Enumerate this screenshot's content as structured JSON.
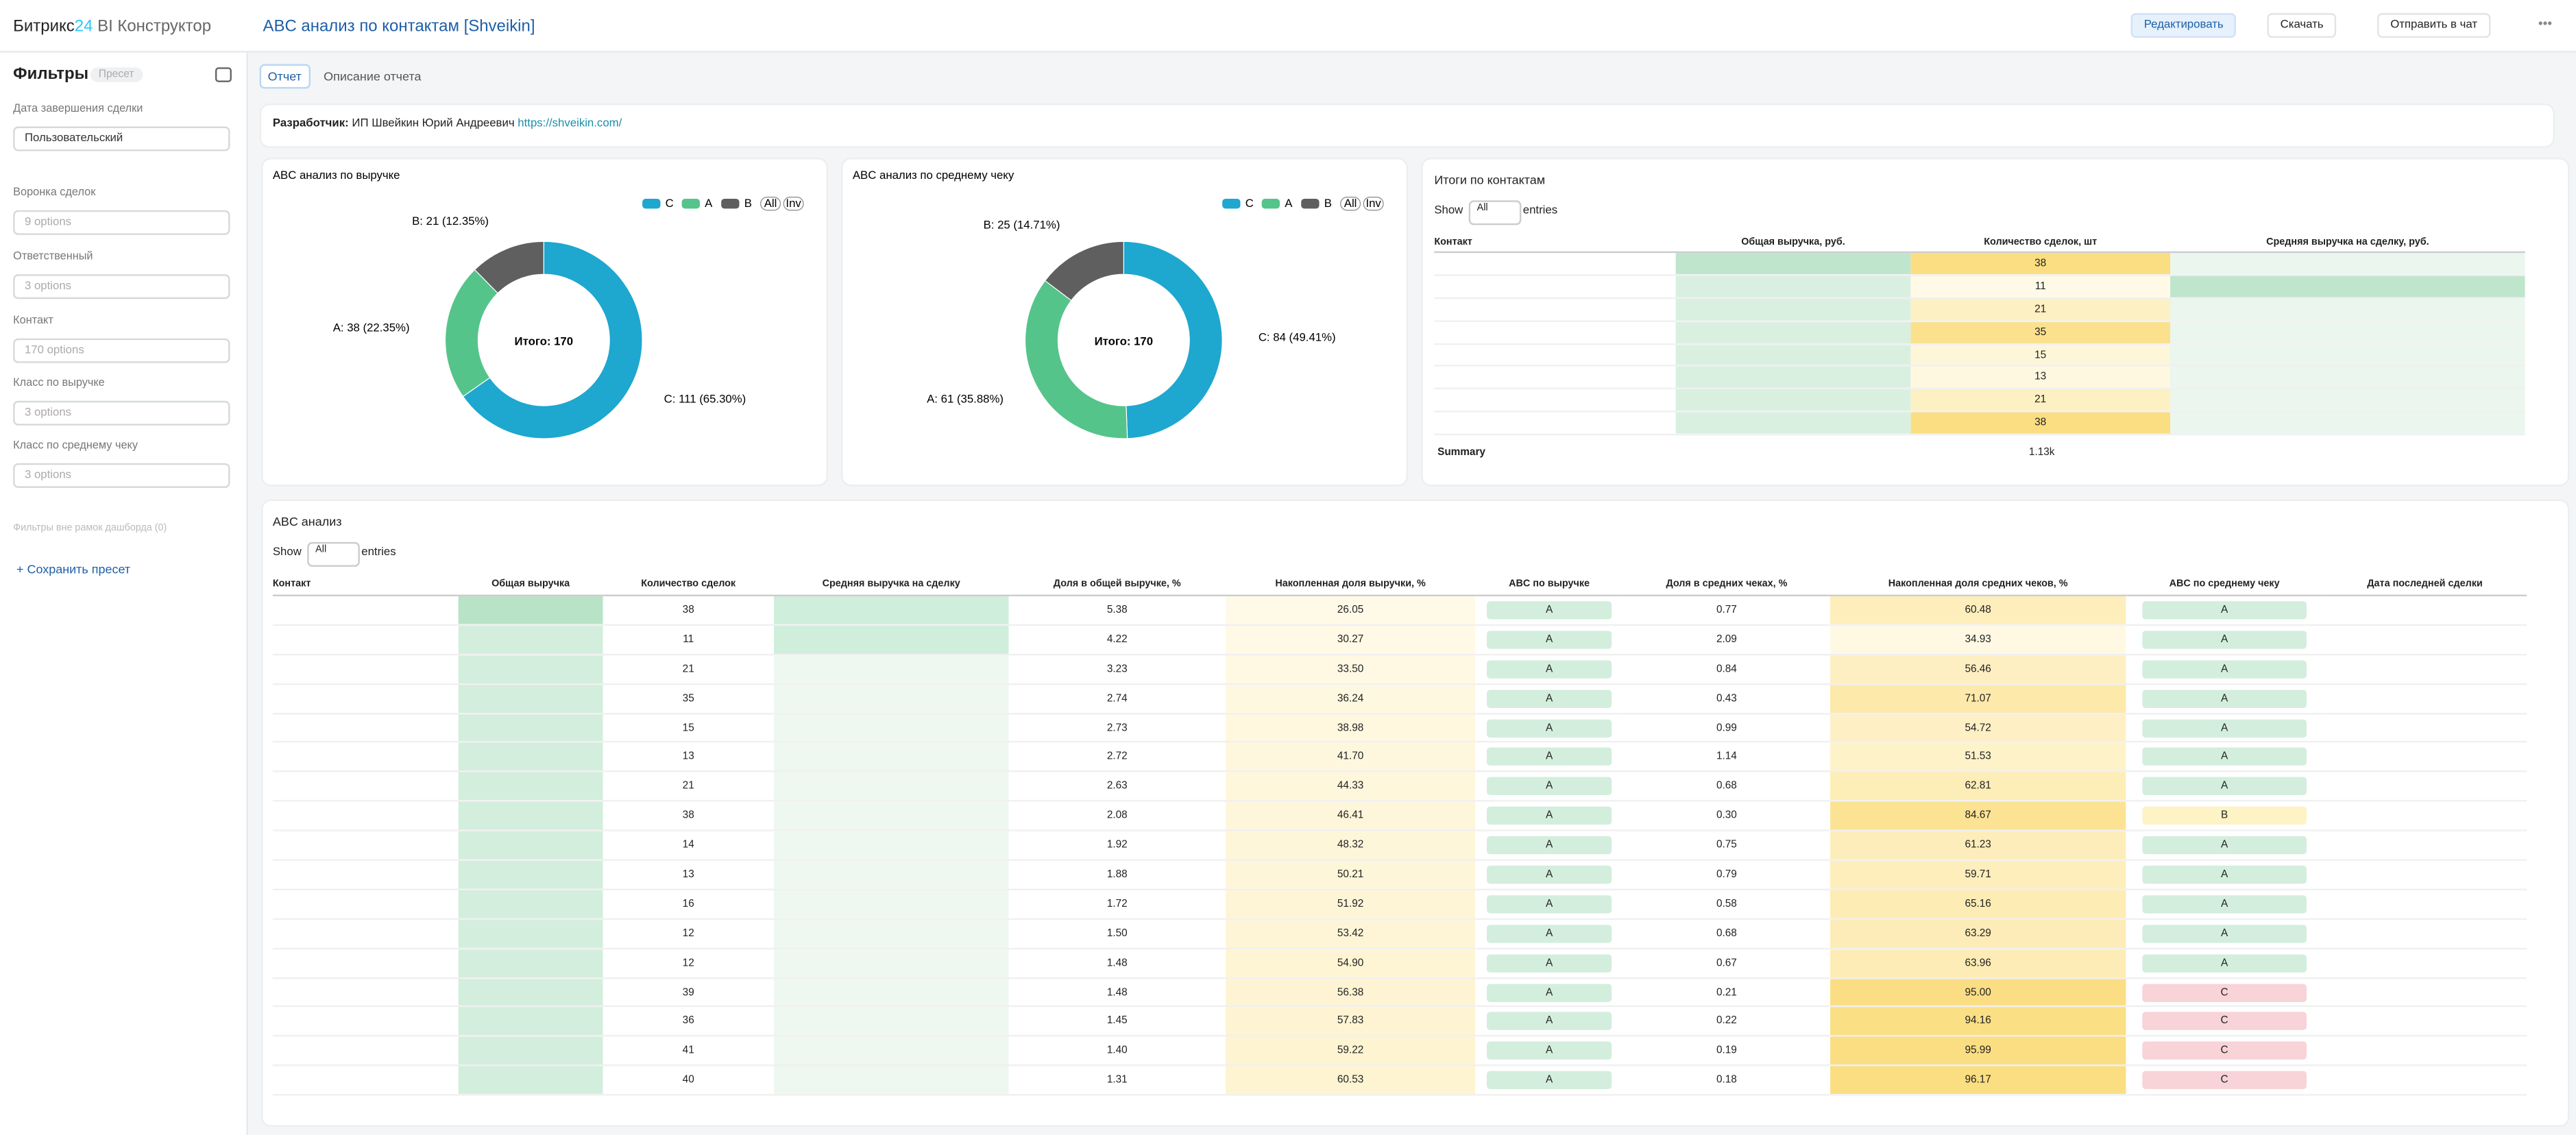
{
  "header": {
    "logo": "Битрикс",
    "logo_num": "24",
    "logo_suffix": "BI Конструктор",
    "title": "ABC анализ по контактам [Shveikin]",
    "buttons": [
      "Редактировать",
      "Скачать",
      "Отправить в чат"
    ]
  },
  "sidebar": {
    "title": "Фильтры",
    "preset": "Пресет",
    "filters": [
      {
        "label": "Дата завершения сделки",
        "value": "Пользовательский"
      },
      {
        "label": "Воронка сделок",
        "value": "9 options"
      },
      {
        "label": "Ответственный",
        "value": "3 options"
      },
      {
        "label": "Контакт",
        "value": "170 options"
      },
      {
        "label": "Класс по выручке",
        "value": "3 options"
      },
      {
        "label": "Класс по среднему чеку",
        "value": "3 options"
      }
    ],
    "outside": "Фильтры вне рамок дашборда (0)",
    "save": "+ Сохранить пресет"
  },
  "tabs": [
    "Отчет",
    "Описание отчета"
  ],
  "developer": {
    "label": "Разработчик:",
    "name": "ИП Швейкин Юрий Андреевич",
    "link": "https://shveikin.com/"
  },
  "chart_data": [
    {
      "type": "pie",
      "title": "ABC анализ по выручке",
      "categories": [
        "C",
        "A",
        "B"
      ],
      "values": [
        111,
        38,
        21
      ],
      "colors": [
        "#1ea7cf",
        "#55c48a",
        "#5f5f5f"
      ],
      "value_labels": [
        "C: 111 (65.30%)",
        "A: 38 (22.35%)",
        "B: 21 (12.35%)"
      ],
      "center_label": "Итого: 170",
      "legend_toggles": [
        "All",
        "Inv"
      ]
    },
    {
      "type": "pie",
      "title": "ABC анализ по среднему чеку",
      "categories": [
        "C",
        "A",
        "B"
      ],
      "values": [
        84,
        61,
        25
      ],
      "colors": [
        "#1ea7cf",
        "#55c48a",
        "#5f5f5f"
      ],
      "value_labels": [
        "C: 84 (49.41%)",
        "A: 61 (35.88%)",
        "B: 25 (14.71%)"
      ],
      "center_label": "Итого: 170",
      "legend_toggles": [
        "All",
        "Inv"
      ]
    }
  ],
  "totals_table": {
    "title": "Итоги по контактам",
    "show": "Show",
    "page_size": "All",
    "entries": "entries",
    "columns": [
      "Контакт",
      "Общая выручка, руб.",
      "Количество сделок, шт",
      "Средняя выручка на сделку, руб."
    ],
    "counts": [
      "38",
      "11",
      "21",
      "35",
      "15",
      "13",
      "21",
      "38"
    ],
    "summary_label": "Summary",
    "summary_count": "1.13k"
  },
  "abc_table": {
    "title": "ABC анализ",
    "show": "Show",
    "page_size": "All",
    "entries": "entries",
    "columns": [
      "Контакт",
      "Общая выручка",
      "Количество сделок",
      "Средняя выручка на сделку",
      "Доля в общей выручке, %",
      "Накопленная доля выручки, %",
      "ABC по выручке",
      "Доля в средних чеках, %",
      "Накопленная доля средних чеков, %",
      "ABC по среднему чеку",
      "Дата последней сделки"
    ],
    "rows": [
      [
        "38",
        "5.38",
        "26.05",
        "A",
        "0.77",
        "60.48",
        "A"
      ],
      [
        "11",
        "4.22",
        "30.27",
        "A",
        "2.09",
        "34.93",
        "A"
      ],
      [
        "21",
        "3.23",
        "33.50",
        "A",
        "0.84",
        "56.46",
        "A"
      ],
      [
        "35",
        "2.74",
        "36.24",
        "A",
        "0.43",
        "71.07",
        "A"
      ],
      [
        "15",
        "2.73",
        "38.98",
        "A",
        "0.99",
        "54.72",
        "A"
      ],
      [
        "13",
        "2.72",
        "41.70",
        "A",
        "1.14",
        "51.53",
        "A"
      ],
      [
        "21",
        "2.63",
        "44.33",
        "A",
        "0.68",
        "62.81",
        "A"
      ],
      [
        "38",
        "2.08",
        "46.41",
        "A",
        "0.30",
        "84.67",
        "B"
      ],
      [
        "14",
        "1.92",
        "48.32",
        "A",
        "0.75",
        "61.23",
        "A"
      ],
      [
        "13",
        "1.88",
        "50.21",
        "A",
        "0.79",
        "59.71",
        "A"
      ],
      [
        "16",
        "1.72",
        "51.92",
        "A",
        "0.58",
        "65.16",
        "A"
      ],
      [
        "12",
        "1.50",
        "53.42",
        "A",
        "0.68",
        "63.29",
        "A"
      ],
      [
        "12",
        "1.48",
        "54.90",
        "A",
        "0.67",
        "63.96",
        "A"
      ],
      [
        "39",
        "1.48",
        "56.38",
        "A",
        "0.21",
        "95.00",
        "C"
      ],
      [
        "36",
        "1.45",
        "57.83",
        "A",
        "0.22",
        "94.16",
        "C"
      ],
      [
        "41",
        "1.40",
        "59.22",
        "A",
        "0.19",
        "95.99",
        "C"
      ],
      [
        "40",
        "1.31",
        "60.53",
        "A",
        "0.18",
        "96.17",
        "C"
      ]
    ]
  }
}
